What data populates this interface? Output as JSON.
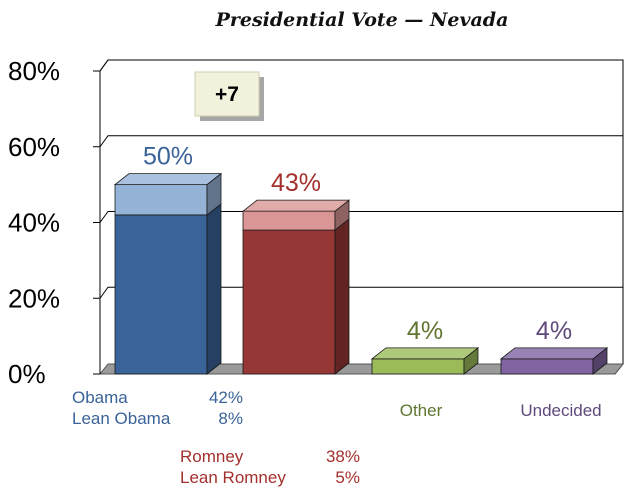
{
  "chart_data": {
    "type": "bar",
    "title": "Presidential Vote — Nevada",
    "ylim": [
      0,
      80
    ],
    "yticks": [
      "0%",
      "20%",
      "40%",
      "60%",
      "80%"
    ],
    "grid": true,
    "margin_badge": "+7",
    "bars": [
      {
        "category": "Obama",
        "total_label": "50%",
        "segments": [
          {
            "name": "Obama",
            "value": 42,
            "value_label": "42%",
            "color": "#3A6399"
          },
          {
            "name": "Lean Obama",
            "value": 8,
            "value_label": "8%",
            "color": "#95B3D7"
          }
        ],
        "color": "#3A6399",
        "label_color": "#3A6399"
      },
      {
        "category": "Romney",
        "total_label": "43%",
        "segments": [
          {
            "name": "Romney",
            "value": 38,
            "value_label": "38%",
            "color": "#953735"
          },
          {
            "name": "Lean Romney",
            "value": 5,
            "value_label": "5%",
            "color": "#D99694"
          }
        ],
        "color": "#953735",
        "label_color": "#A3302D"
      },
      {
        "category": "Other",
        "total_label": "4%",
        "segments": [
          {
            "name": "Other",
            "value": 4,
            "color": "#9BBB59"
          }
        ],
        "color": "#9BBB59",
        "label_color": "#5F7530"
      },
      {
        "category": "Undecided",
        "total_label": "4%",
        "segments": [
          {
            "name": "Undecided",
            "value": 4,
            "color": "#8064A2"
          }
        ],
        "color": "#8064A2",
        "label_color": "#604A7B"
      }
    ]
  }
}
